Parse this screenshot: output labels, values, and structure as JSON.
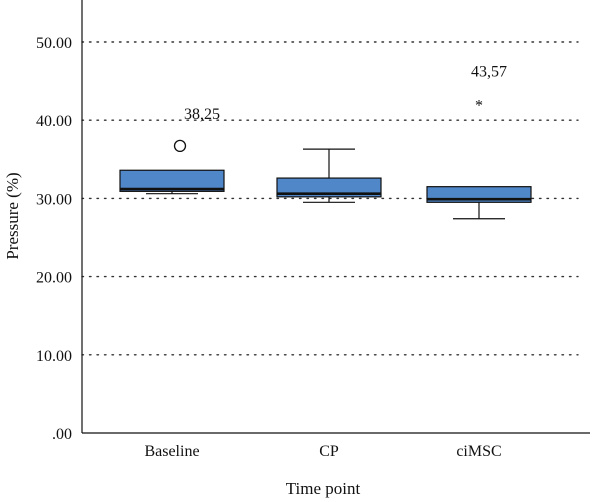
{
  "chart_data": {
    "type": "box",
    "title": "",
    "xlabel": "Time point",
    "ylabel": "Pressure (%)",
    "ylim": [
      0,
      55
    ],
    "y_ticks": [
      0,
      10,
      20,
      30,
      40,
      50
    ],
    "y_tick_labels": [
      ".00",
      "10.00",
      "20.00",
      "30.00",
      "40.00",
      "50.00"
    ],
    "grid": "horizontal-dotted",
    "box_color": "#4f87c9",
    "categories": [
      "Baseline",
      "CP",
      "ciMSC"
    ],
    "boxes": [
      {
        "category": "Baseline",
        "whisker_low": 30.6,
        "q1": 30.9,
        "median": 31.2,
        "q3": 33.6,
        "whisker_high": 33.6
      },
      {
        "category": "CP",
        "whisker_low": 29.5,
        "q1": 30.2,
        "median": 30.6,
        "q3": 32.6,
        "whisker_high": 36.3
      },
      {
        "category": "ciMSC",
        "whisker_low": 27.4,
        "q1": 29.5,
        "median": 29.9,
        "q3": 31.5,
        "whisker_high": 31.5
      }
    ],
    "outliers": [
      {
        "category": "Baseline",
        "value": 38.25,
        "marker": "circle",
        "label": "38,25"
      },
      {
        "category": "ciMSC",
        "value": 43.57,
        "marker": "asterisk",
        "label": "43,57"
      }
    ]
  }
}
